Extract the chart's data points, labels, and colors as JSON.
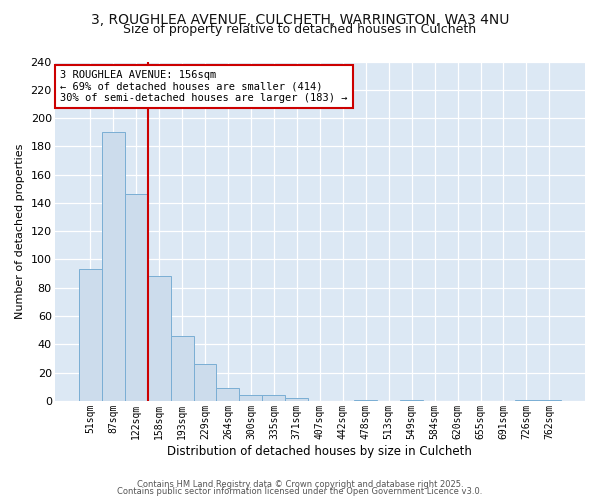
{
  "title": "3, ROUGHLEA AVENUE, CULCHETH, WARRINGTON, WA3 4NU",
  "subtitle": "Size of property relative to detached houses in Culcheth",
  "xlabel": "Distribution of detached houses by size in Culcheth",
  "ylabel": "Number of detached properties",
  "categories": [
    "51sqm",
    "87sqm",
    "122sqm",
    "158sqm",
    "193sqm",
    "229sqm",
    "264sqm",
    "300sqm",
    "335sqm",
    "371sqm",
    "407sqm",
    "442sqm",
    "478sqm",
    "513sqm",
    "549sqm",
    "584sqm",
    "620sqm",
    "655sqm",
    "691sqm",
    "726sqm",
    "762sqm"
  ],
  "values": [
    93,
    190,
    146,
    88,
    46,
    26,
    9,
    4,
    4,
    2,
    0,
    0,
    1,
    0,
    1,
    0,
    0,
    0,
    0,
    1,
    1
  ],
  "bar_color": "#ccdcec",
  "bar_edge_color": "#7aaed4",
  "vline_x": 2.5,
  "annotation_text": "3 ROUGHLEA AVENUE: 156sqm\n← 69% of detached houses are smaller (414)\n30% of semi-detached houses are larger (183) →",
  "annotation_box_facecolor": "#ffffff",
  "annotation_box_edgecolor": "#cc0000",
  "vline_color": "#cc0000",
  "grid_color": "#c8d8e8",
  "background_color": "#ffffff",
  "plot_bg_color": "#dce8f4",
  "title_fontsize": 10,
  "subtitle_fontsize": 9,
  "footer_line1": "Contains HM Land Registry data © Crown copyright and database right 2025.",
  "footer_line2": "Contains public sector information licensed under the Open Government Licence v3.0.",
  "ylim": [
    0,
    240
  ],
  "yticks": [
    0,
    20,
    40,
    60,
    80,
    100,
    120,
    140,
    160,
    180,
    200,
    220,
    240
  ]
}
